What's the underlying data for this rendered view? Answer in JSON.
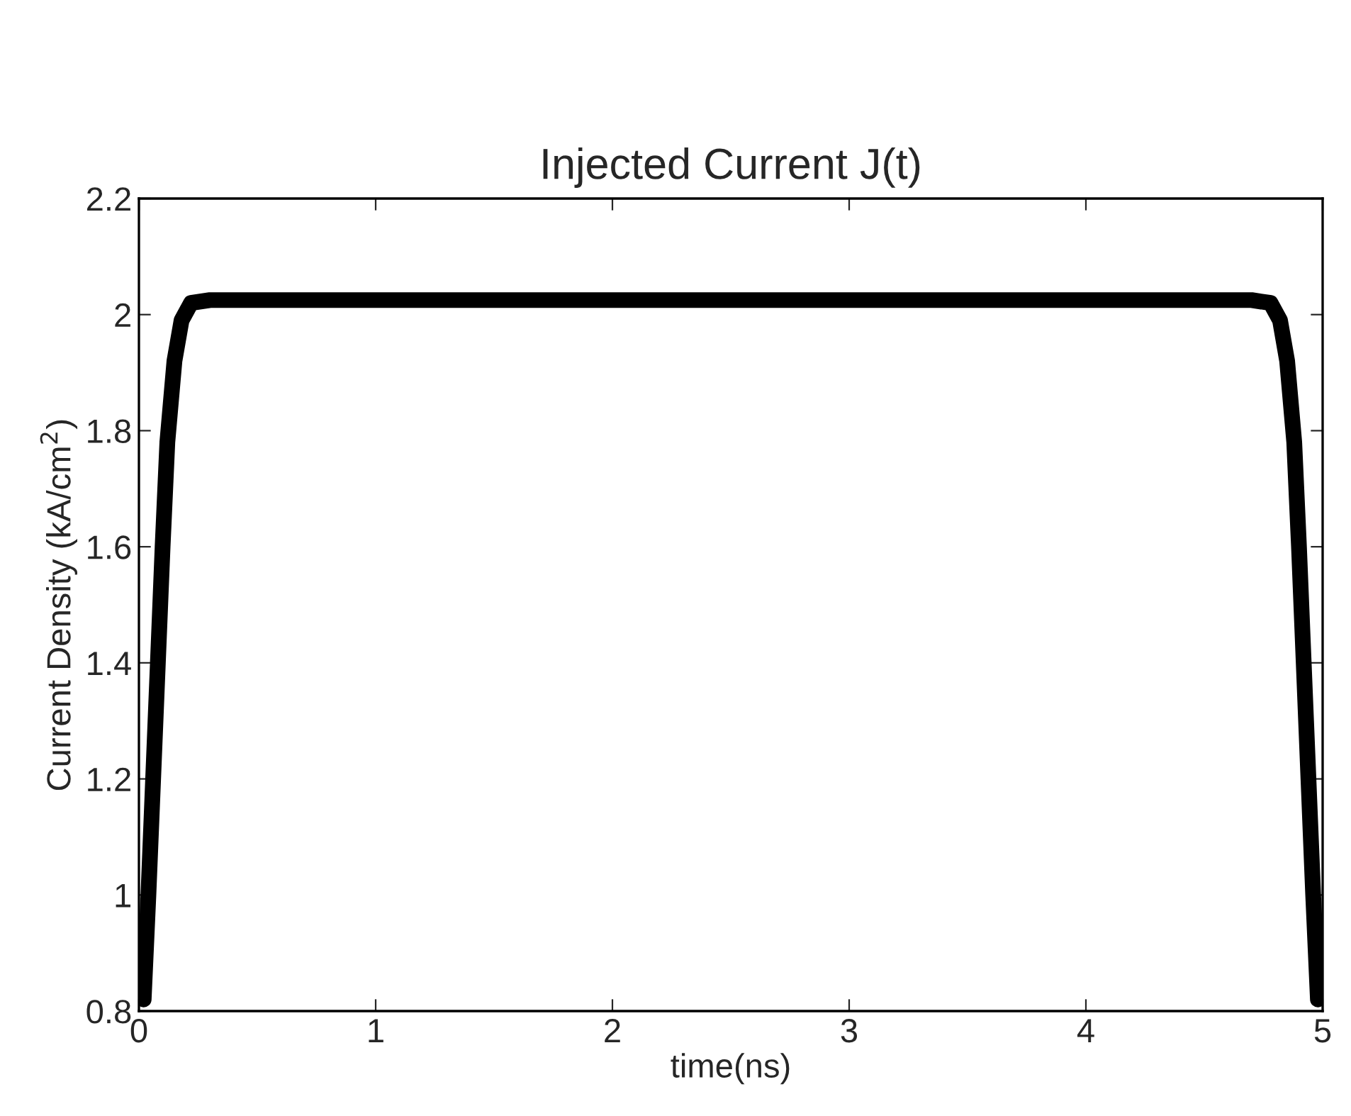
{
  "chart_data": {
    "type": "line",
    "title": "Injected Current J(t)",
    "xlabel": "time(ns)",
    "ylabel": "Current Density (kA/cm$^{2}$)",
    "x": [
      0.02,
      0.04,
      0.06,
      0.08,
      0.1,
      0.12,
      0.15,
      0.18,
      0.22,
      0.3,
      1,
      2,
      3,
      4,
      4.7,
      4.78,
      4.82,
      4.85,
      4.88,
      4.9,
      4.92,
      4.94,
      4.96,
      4.98
    ],
    "series": [
      {
        "color": "#000000",
        "values": [
          0.82,
          1.0,
          1.2,
          1.4,
          1.6,
          1.78,
          1.92,
          1.99,
          2.02,
          2.025,
          2.025,
          2.025,
          2.025,
          2.025,
          2.025,
          2.02,
          1.99,
          1.92,
          1.78,
          1.6,
          1.4,
          1.2,
          1.0,
          0.82
        ]
      }
    ],
    "xlim": [
      0,
      5
    ],
    "xticks": [
      0,
      1,
      2,
      3,
      4,
      5
    ],
    "ylim": [
      0.8,
      2.2
    ],
    "yticks": [
      0.8,
      1,
      1.2,
      1.4,
      1.6,
      1.8,
      2,
      2.2
    ],
    "grid": false,
    "legend": false,
    "line_style": "solid",
    "marker": "none"
  }
}
